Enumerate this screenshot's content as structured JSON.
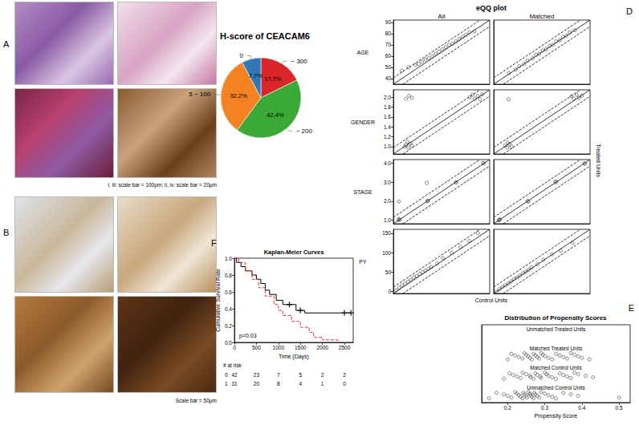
{
  "panels": {
    "A": {
      "label": "A",
      "caption": "i, iii: scale bar = 100μm; ii, iv: scale bar = 20μm"
    },
    "B": {
      "label": "B",
      "caption": "Scale bar = 50μm"
    }
  },
  "chart_data": [
    {
      "type": "pie",
      "title": "H-score of CEACAM6",
      "categories": [
        "~ 300",
        "~ 200",
        "5 ~ 100",
        "0"
      ],
      "values": [
        17.7,
        42.4,
        32.2,
        7.7
      ],
      "value_labels": [
        "17.7%",
        "42.4%",
        "32.2%",
        "7.7%"
      ],
      "colors": [
        "#d9262a",
        "#3aa935",
        "#f58220",
        "#2e78b7"
      ],
      "data_labels": true
    },
    {
      "type": "line",
      "panel": "F",
      "title": "Kaplan-Meier Curves",
      "xlabel": "Time (Days)",
      "ylabel": "Cumulative Survival Rate",
      "xlim": [
        0,
        2700
      ],
      "xticks": [
        0,
        500,
        1000,
        1500,
        2000,
        2500
      ],
      "ylim": [
        0,
        1
      ],
      "yticks": [
        {
          "value": 0,
          "label": "0.0"
        },
        0.2,
        0.4,
        0.6,
        0.8,
        {
          "value": 1,
          "label": "1.0"
        }
      ],
      "grid": false,
      "annotation": "p=0.03",
      "series": [
        {
          "color": "#000000",
          "line_style": "solid",
          "marker": "plus",
          "x": [
            0,
            50,
            150,
            250,
            400,
            500,
            600,
            700,
            800,
            950,
            1100,
            1400,
            1600,
            2650
          ],
          "values": [
            1,
            0.95,
            0.9,
            0.85,
            0.8,
            0.75,
            0.7,
            0.62,
            0.57,
            0.5,
            0.45,
            0.38,
            0.35,
            0.35
          ],
          "censored_x": [
            1250,
            1500,
            2500,
            2650
          ],
          "censored_y": [
            0.45,
            0.38,
            0.35,
            0.35
          ]
        },
        {
          "color": "#e8302c",
          "line_style": "dashed",
          "x": [
            0,
            100,
            250,
            400,
            550,
            700,
            900,
            1000,
            1100,
            1300,
            1500,
            1700,
            1800,
            2000,
            2350
          ],
          "values": [
            1,
            0.95,
            0.85,
            0.75,
            0.65,
            0.55,
            0.45,
            0.38,
            0.32,
            0.25,
            0.18,
            0.12,
            0.06,
            0.03,
            0
          ]
        }
      ],
      "at_risk": {
        "label": "# at risk",
        "times": [
          0,
          500,
          1000,
          1500,
          2000,
          2500
        ],
        "rows": [
          {
            "name": "0",
            "values": [
              42,
              23,
              7,
              5,
              2,
              2
            ]
          },
          {
            "name": "1",
            "values": [
              31,
              20,
              8,
              4,
              1,
              0
            ]
          }
        ]
      }
    },
    {
      "type": "scatter",
      "panel": "D",
      "title": "eQQ plot",
      "xlabel": "Control Units",
      "ylabel": "Treated Units",
      "columns": [
        "All",
        "Matched"
      ],
      "tick_labels": "y",
      "marker": "circle",
      "grid": false,
      "rows": [
        {
          "label": "AGE",
          "xlim": [
            35,
            92
          ],
          "ylim": [
            35,
            92
          ],
          "yticks": [
            40,
            50,
            60,
            70,
            80,
            90
          ],
          "lines": [
            {
              "line_style": "solid",
              "x": [
                35,
                92
              ],
              "values": [
                35,
                92
              ]
            },
            {
              "line_style": "dashed",
              "x": [
                35,
                86.3
              ],
              "values": [
                40.7,
                92
              ]
            },
            {
              "line_style": "dashed",
              "x": [
                40.7,
                92
              ],
              "values": [
                35,
                86.3
              ]
            }
          ],
          "points": [
            [
              [
                40,
                47
              ],
              [
                44,
                50
              ],
              [
                48,
                52
              ],
              [
                50,
                53
              ],
              [
                52,
                55
              ],
              [
                54,
                57
              ],
              [
                56,
                58
              ],
              [
                58,
                60
              ],
              [
                60,
                62
              ],
              [
                62,
                64
              ],
              [
                64,
                66
              ],
              [
                66,
                68
              ],
              [
                68,
                70
              ],
              [
                70,
                71
              ],
              [
                72,
                73
              ],
              [
                74,
                75
              ],
              [
                76,
                77
              ],
              [
                78,
                79
              ],
              [
                80,
                81
              ],
              [
                83,
                82
              ]
            ],
            [
              [
                44,
                45
              ],
              [
                48,
                48
              ],
              [
                50,
                51
              ],
              [
                53,
                53
              ],
              [
                55,
                56
              ],
              [
                58,
                58
              ],
              [
                60,
                61
              ],
              [
                62,
                62
              ],
              [
                64,
                65
              ],
              [
                66,
                66
              ],
              [
                68,
                69
              ],
              [
                70,
                70
              ],
              [
                72,
                73
              ],
              [
                74,
                74
              ],
              [
                76,
                77
              ],
              [
                78,
                78
              ],
              [
                80,
                81
              ],
              [
                83,
                83
              ]
            ]
          ]
        },
        {
          "label": "GENDER",
          "xlim": [
            0.85,
            2.15
          ],
          "ylim": [
            0.85,
            2.15
          ],
          "yticks": [
            {
              "value": 1,
              "label": "1.0"
            },
            1.2,
            1.4,
            1.6,
            1.8,
            {
              "value": 2,
              "label": "2.0"
            }
          ],
          "lines": [
            {
              "line_style": "solid",
              "x": [
                0.85,
                2.15
              ],
              "values": [
                0.85,
                2.15
              ]
            },
            {
              "line_style": "dashed",
              "x": [
                0.85,
                2.02
              ],
              "values": [
                0.98,
                2.15
              ]
            },
            {
              "line_style": "dashed",
              "x": [
                0.98,
                2.15
              ],
              "values": [
                0.85,
                2.02
              ]
            }
          ],
          "points": [
            [
              [
                1.0,
                1.0
              ],
              [
                1.02,
                1.04
              ],
              [
                1.05,
                0.98
              ],
              [
                1.08,
                1.06
              ],
              [
                1.1,
                1.02
              ],
              [
                1.04,
                1.1
              ],
              [
                1.02,
                1.97
              ],
              [
                1.06,
                2.03
              ],
              [
                1.1,
                1.99
              ],
              [
                1.88,
                2.0
              ],
              [
                1.92,
                2.05
              ],
              [
                1.95,
                1.97
              ],
              [
                1.99,
                2.02
              ],
              [
                2.02,
                1.96
              ],
              [
                2.05,
                2.06
              ]
            ],
            [
              [
                1.0,
                1.02
              ],
              [
                1.03,
                0.98
              ],
              [
                1.06,
                1.05
              ],
              [
                1.09,
                1.0
              ],
              [
                1.04,
                1.08
              ],
              [
                1.05,
                1.96
              ],
              [
                1.9,
                2.02
              ],
              [
                1.93,
                1.97
              ],
              [
                1.97,
                2.05
              ],
              [
                2.0,
                1.99
              ],
              [
                2.04,
                2.03
              ]
            ]
          ]
        },
        {
          "label": "STAGE",
          "xlim": [
            0.8,
            4.2
          ],
          "ylim": [
            0.8,
            4.2
          ],
          "yticks": [
            {
              "value": 1,
              "label": "1.0"
            },
            {
              "value": 2,
              "label": "2.0"
            },
            {
              "value": 3,
              "label": "3.0"
            },
            {
              "value": 4,
              "label": "4.0"
            }
          ],
          "lines": [
            {
              "line_style": "solid",
              "x": [
                0.8,
                4.2
              ],
              "values": [
                0.8,
                4.2
              ]
            },
            {
              "line_style": "dashed",
              "x": [
                0.8,
                3.86
              ],
              "values": [
                1.14,
                4.2
              ]
            },
            {
              "line_style": "dashed",
              "x": [
                1.14,
                4.2
              ],
              "values": [
                0.8,
                3.86
              ]
            }
          ],
          "points": [
            [
              [
                1,
                1
              ],
              [
                1.03,
                1.02
              ],
              [
                0.98,
                1.04
              ],
              [
                1.0,
                1.98
              ],
              [
                2,
                2
              ],
              [
                2.03,
                2.02
              ],
              [
                1.98,
                2.96
              ],
              [
                3,
                3
              ],
              [
                3.02,
                2.98
              ],
              [
                4,
                4
              ],
              [
                3.97,
                4.02
              ]
            ],
            [
              [
                1,
                1
              ],
              [
                1.02,
                1.03
              ],
              [
                0.98,
                0.99
              ],
              [
                2,
                2
              ],
              [
                2.02,
                1.98
              ],
              [
                3,
                3
              ],
              [
                2.98,
                3.03
              ],
              [
                4,
                4
              ],
              [
                4.02,
                3.98
              ]
            ]
          ]
        },
        {
          "label": "PY",
          "xlim": [
            -5,
            160
          ],
          "ylim": [
            -5,
            160
          ],
          "yticks": [
            0,
            50,
            100,
            150
          ],
          "lines": [
            {
              "line_style": "solid",
              "x": [
                -5,
                160
              ],
              "values": [
                -5,
                160
              ]
            },
            {
              "line_style": "dashed",
              "x": [
                -5,
                143.5
              ],
              "values": [
                11.5,
                160
              ]
            },
            {
              "line_style": "dashed",
              "x": [
                11.5,
                160
              ],
              "values": [
                -5,
                143.5
              ]
            }
          ],
          "points": [
            [
              [
                0,
                3
              ],
              [
                5,
                10
              ],
              [
                10,
                16
              ],
              [
                15,
                20
              ],
              [
                20,
                25
              ],
              [
                25,
                30
              ],
              [
                30,
                36
              ],
              [
                35,
                40
              ],
              [
                40,
                45
              ],
              [
                45,
                50
              ],
              [
                50,
                54
              ],
              [
                55,
                58
              ],
              [
                60,
                63
              ],
              [
                70,
                72
              ],
              [
                80,
                86
              ],
              [
                95,
                100
              ],
              [
                110,
                115
              ],
              [
                125,
                130
              ],
              [
                140,
                150
              ]
            ],
            [
              [
                0,
                0
              ],
              [
                5,
                6
              ],
              [
                10,
                12
              ],
              [
                15,
                16
              ],
              [
                20,
                21
              ],
              [
                25,
                26
              ],
              [
                30,
                32
              ],
              [
                35,
                36
              ],
              [
                40,
                41
              ],
              [
                45,
                47
              ],
              [
                50,
                51
              ],
              [
                55,
                56
              ],
              [
                60,
                62
              ],
              [
                70,
                70
              ],
              [
                80,
                82
              ],
              [
                95,
                96
              ],
              [
                110,
                105
              ],
              [
                130,
                125
              ]
            ]
          ]
        }
      ]
    },
    {
      "type": "scatter",
      "panel": "E",
      "title": "Distribution of Propensity Scores",
      "xlabel": "Propensity Score",
      "xlim": [
        0.13,
        0.53
      ],
      "xticks": [
        0.2,
        0.3,
        0.4,
        0.5
      ],
      "tick_labels": "x",
      "marker": "circle",
      "grid": false,
      "categories": [
        "Unmatched Treated Units",
        "Matched Treated Units",
        "Matched Control Units",
        "Unmatched Control Units"
      ],
      "values": [
        [],
        [
          0.2,
          0.21,
          0.22,
          0.23,
          0.24,
          0.245,
          0.25,
          0.255,
          0.26,
          0.265,
          0.27,
          0.275,
          0.28,
          0.285,
          0.29,
          0.295,
          0.3,
          0.31,
          0.32,
          0.33,
          0.34,
          0.35,
          0.36,
          0.37,
          0.38,
          0.39,
          0.4,
          0.42
        ],
        [
          0.19,
          0.205,
          0.215,
          0.225,
          0.235,
          0.24,
          0.25,
          0.26,
          0.262,
          0.27,
          0.275,
          0.28,
          0.288,
          0.29,
          0.3,
          0.305,
          0.31,
          0.32,
          0.33,
          0.34,
          0.35,
          0.36,
          0.37,
          0.38,
          0.39,
          0.41,
          0.43
        ],
        [
          0.15,
          0.17,
          0.19,
          0.2,
          0.21,
          0.22,
          0.225,
          0.23,
          0.235,
          0.24,
          0.242,
          0.245,
          0.25,
          0.252,
          0.255,
          0.26,
          0.262,
          0.265,
          0.27,
          0.272,
          0.275,
          0.28,
          0.285,
          0.29,
          0.3,
          0.31,
          0.32,
          0.33,
          0.35,
          0.37,
          0.39,
          0.5
        ]
      ]
    }
  ]
}
